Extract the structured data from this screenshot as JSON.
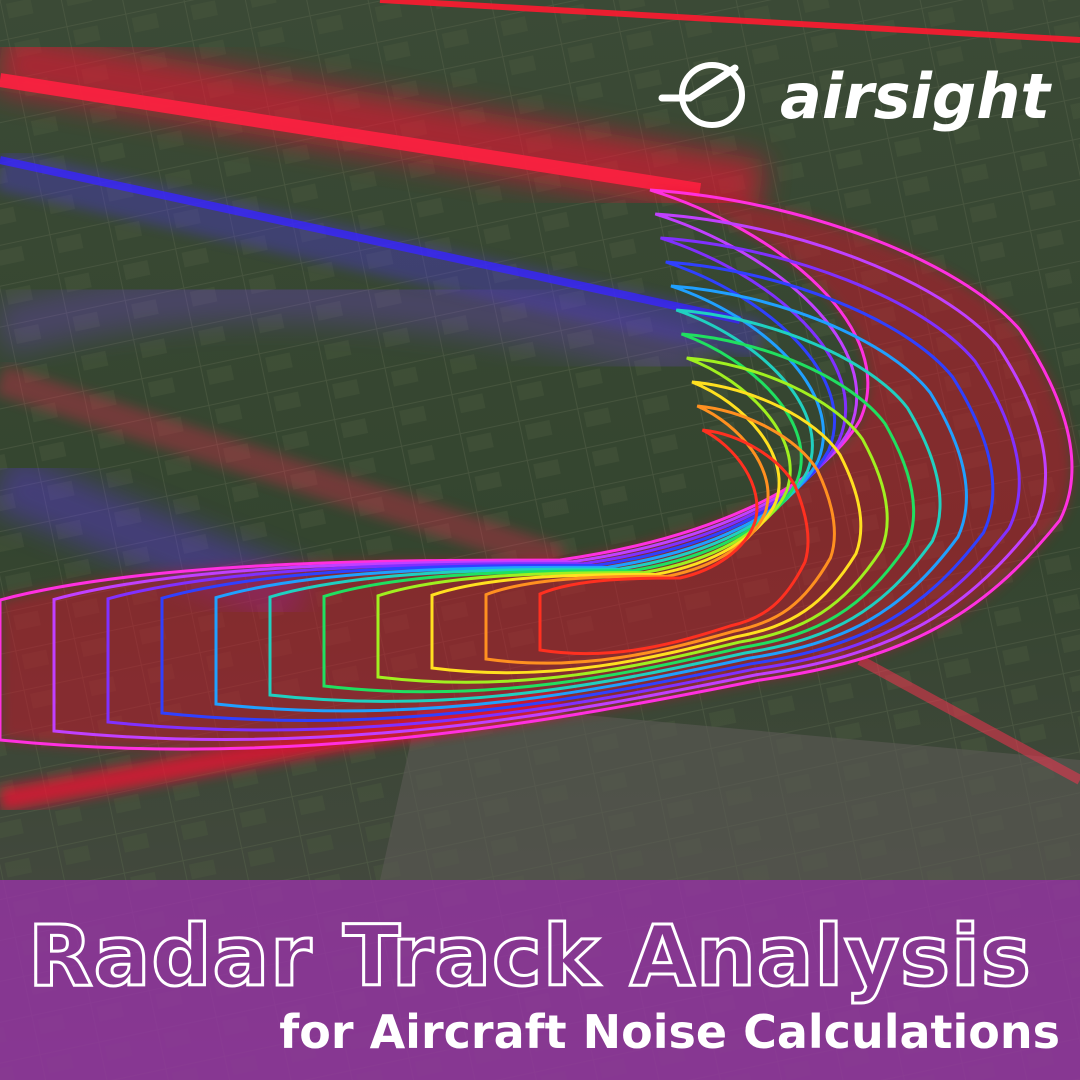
{
  "logo": {
    "text": "airsight"
  },
  "headline": {
    "title": "Radar Track Analysis",
    "subtitle": "for Aircraft Noise Calculations"
  }
}
